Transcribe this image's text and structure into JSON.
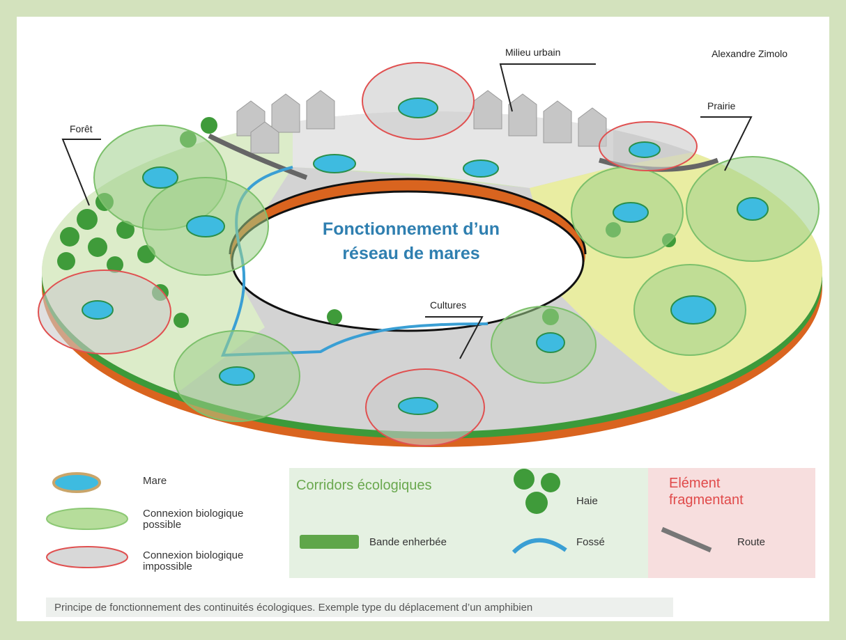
{
  "author": "Alexandre Zimolo",
  "title": [
    "Fonctionnement d’un",
    "réseau de mares"
  ],
  "labels": {
    "urban": "Milieu urbain",
    "prairie": "Prairie",
    "forest": "Forêt",
    "crops": "Cultures"
  },
  "legend": {
    "mare": "Mare",
    "possible": [
      "Connexion biologique",
      "possible"
    ],
    "impossible": [
      "Connexion biologique",
      "impossible"
    ],
    "corridors": {
      "title": "Corridors écologiques",
      "hedge": "Haie",
      "grass": "Bande enherbée",
      "ditch": "Fossé"
    },
    "fragmenting": {
      "title": [
        "Elément",
        "fragmentant"
      ],
      "road": "Route"
    }
  },
  "caption": "Principe de fonctionnement des continuités écologiques. Exemple type du déplacement d’un amphibien"
}
